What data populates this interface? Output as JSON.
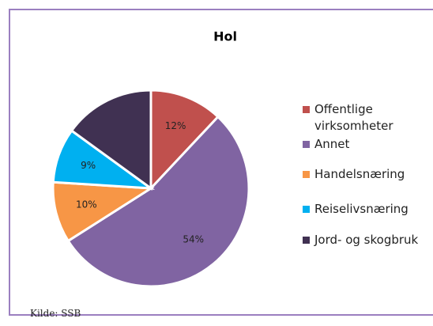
{
  "chart_data": {
    "type": "pie",
    "title": "Hol",
    "categories": [
      "Offentlige virksomheter",
      "Annet",
      "Handelsnæring",
      "Reiselivsnæring",
      "Jord- og skogbruk"
    ],
    "values": [
      12,
      54,
      10,
      9,
      15
    ],
    "value_labels": [
      "12%",
      "54%",
      "10%",
      "9%",
      null
    ],
    "colors": [
      "#c0504d",
      "#8064a2",
      "#f79646",
      "#00b0f0",
      "#403152"
    ],
    "legend": "right",
    "source": "Kilde: SSB"
  }
}
